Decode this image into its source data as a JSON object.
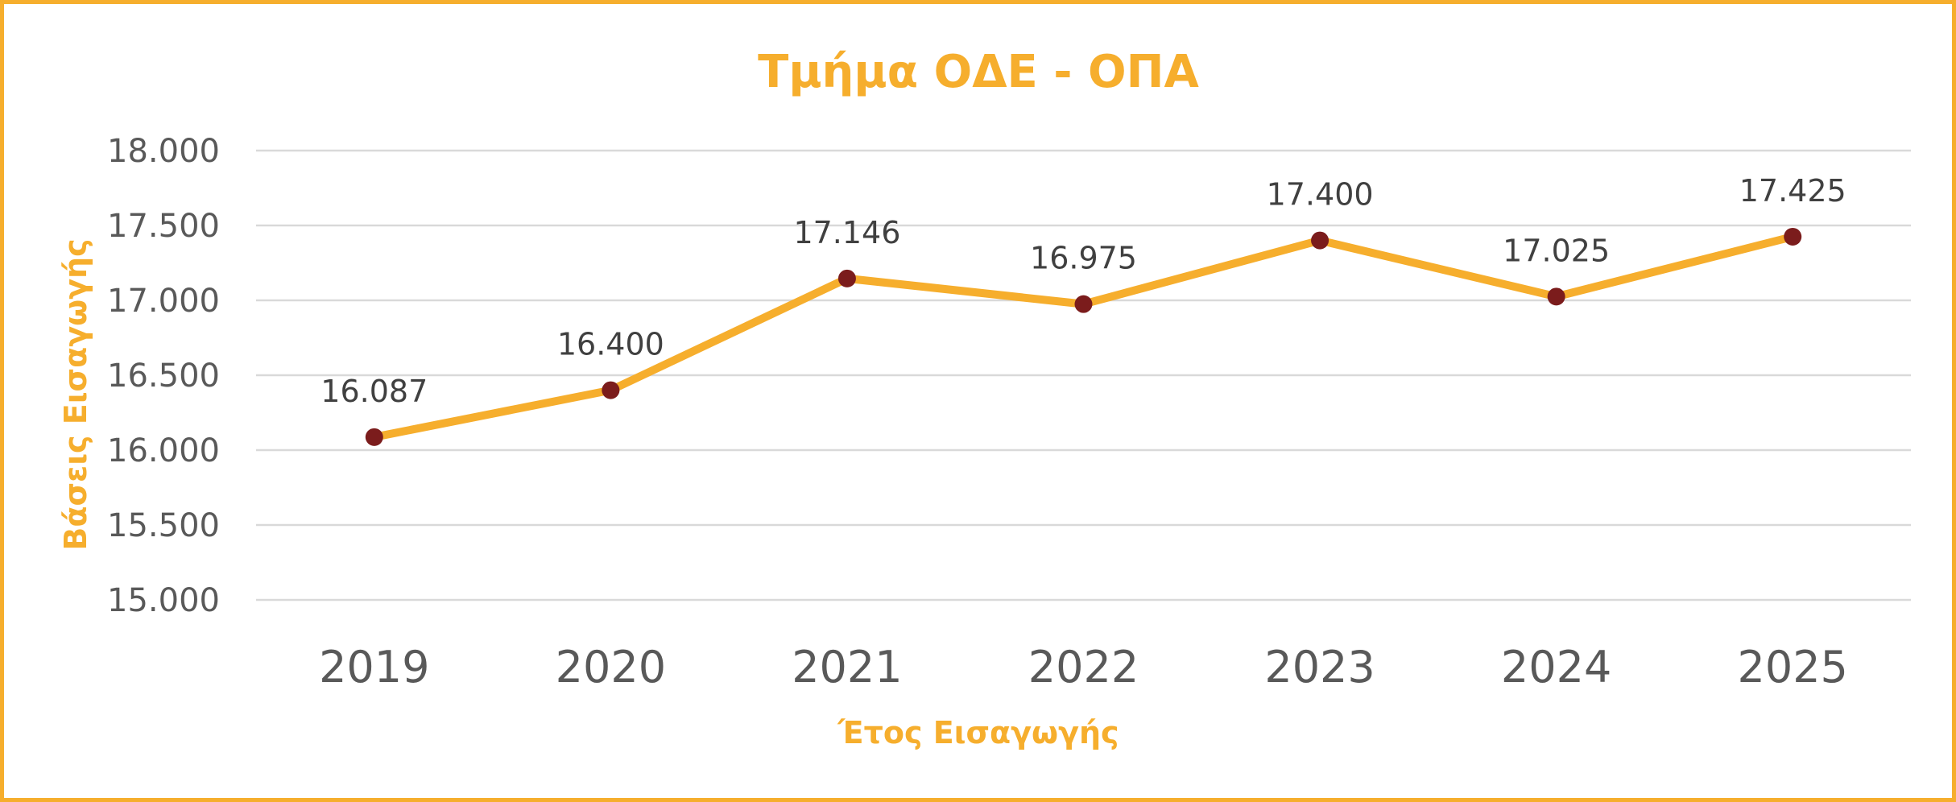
{
  "chart_data": {
    "type": "line",
    "title": "Τμήμα ΟΔΕ - ΟΠΑ",
    "xlabel": "Έτος Εισαγωγής",
    "ylabel": "Βάσεις Εισαγωγής",
    "categories": [
      "2019",
      "2020",
      "2021",
      "2022",
      "2023",
      "2024",
      "2025"
    ],
    "series": [
      {
        "values": [
          16087,
          16400,
          17146,
          16975,
          17400,
          17025,
          17425
        ],
        "data_labels": [
          "16.087",
          "16.400",
          "17.146",
          "16.975",
          "17.400",
          "17.025",
          "17.425"
        ]
      }
    ],
    "ylim": [
      15000,
      18000
    ],
    "yticks": [
      15000,
      15500,
      16000,
      16500,
      17000,
      17500,
      18000
    ],
    "ytick_labels": [
      "15.000",
      "15.500",
      "16.000",
      "16.500",
      "17.000",
      "17.500",
      "18.000"
    ],
    "grid": true,
    "legend": "none",
    "colors": {
      "line": "#F6AE2D",
      "marker": "#7B1C1C",
      "title": "#F6AE2D",
      "axis_title": "#F6AE2D",
      "frame": "#F6AE2D",
      "gridline": "#D9D9D9"
    }
  }
}
